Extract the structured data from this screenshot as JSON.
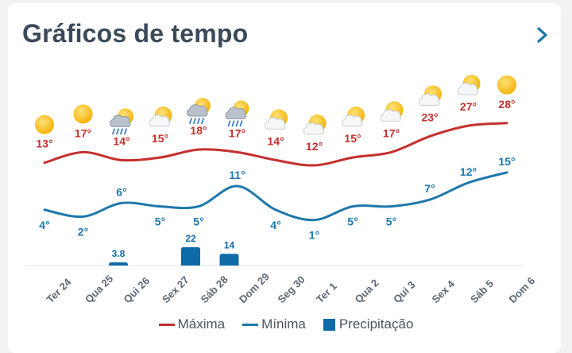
{
  "header": {
    "title": "Gráficos de tempo"
  },
  "colors": {
    "max": "#c4302e",
    "min": "#1e78ac",
    "precip": "#0f6aa8",
    "axis_label": "#5c6773"
  },
  "legend": {
    "max_label": "Máxima",
    "min_label": "Mínima",
    "precip_label": "Precipitação"
  },
  "chart_data": {
    "type": "line",
    "categories": [
      "Ter 24",
      "Qua 25",
      "Qui 26",
      "Sex 27",
      "Sáb 28",
      "Dom 29",
      "Seg 30",
      "Ter 1",
      "Qua 2",
      "Qui 3",
      "Sex 4",
      "Sáb 5",
      "Dom 6"
    ],
    "icons": [
      "sun",
      "sun",
      "rain-sun",
      "partly-cloudy",
      "rain-sun",
      "rain-sun",
      "partly-cloudy",
      "partly-cloudy",
      "partly-cloudy",
      "partly-cloudy",
      "partly-cloudy",
      "partly-cloudy",
      "sun"
    ],
    "series": [
      {
        "name": "Máxima",
        "values": [
          13,
          17,
          14,
          15,
          18,
          17,
          14,
          12,
          15,
          17,
          23,
          27,
          28
        ],
        "labels": [
          "13°",
          "17°",
          "14°",
          "15°",
          "18°",
          "17°",
          "14°",
          "12°",
          "15°",
          "17°",
          "23°",
          "27°",
          "28°"
        ]
      },
      {
        "name": "Mínima",
        "values": [
          4,
          2,
          6,
          5,
          5,
          11,
          4,
          1,
          5,
          5,
          7,
          12,
          15
        ],
        "labels": [
          "4°",
          "2°",
          "6°",
          "5°",
          "5°",
          "11°",
          "4°",
          "1°",
          "5°",
          "5°",
          "7°",
          "12°",
          "15°"
        ]
      }
    ],
    "precipitation": [
      {
        "category": "Qui 26",
        "value": 3.8,
        "label": "3.8"
      },
      {
        "category": "Sáb 28",
        "value": 22,
        "label": "22"
      },
      {
        "category": "Dom 29",
        "value": 14,
        "label": "14"
      }
    ]
  }
}
